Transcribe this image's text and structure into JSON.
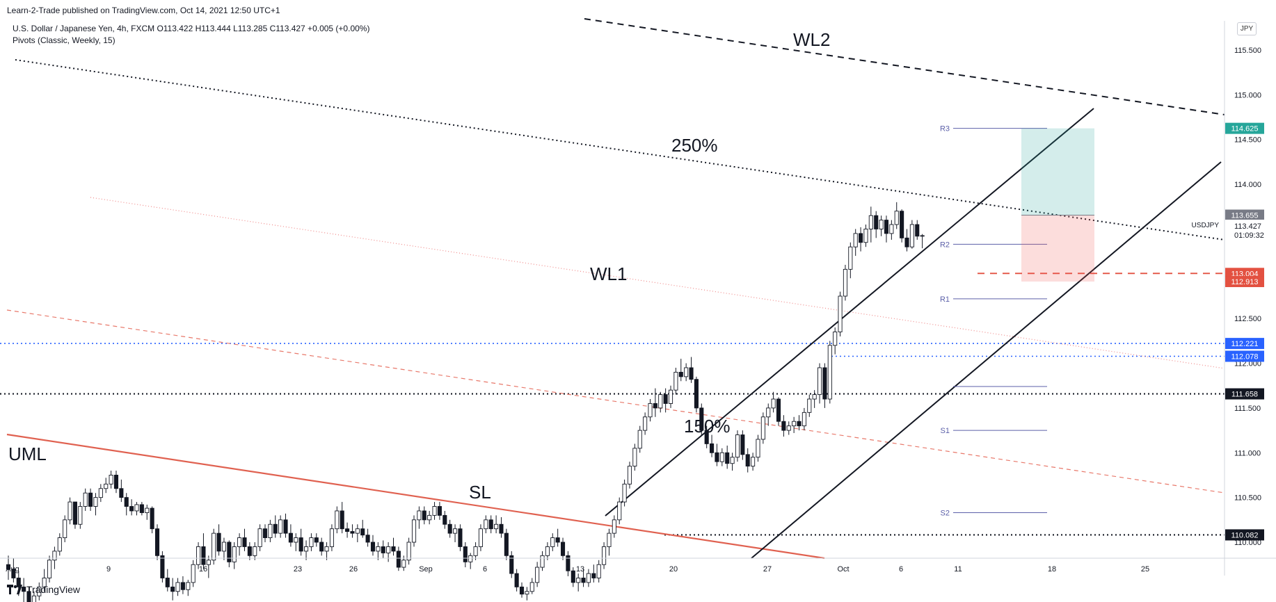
{
  "header": {
    "published": "Learn-2-Trade published on TradingView.com, Oct 14, 2021 12:50 UTC+1",
    "symbol_line": "U.S. Dollar / Japanese Yen, 4h, FXCM  O113.422  H113.444  L113.285  C113.427  +0.005 (+0.00%)",
    "indicator_line": "Pivots (Classic, Weekly, 15)"
  },
  "currency_button": "JPY",
  "footer": {
    "brand": "TradingView",
    "logo_icon": "tradingview-logo-icon"
  },
  "chart_data": {
    "type": "candlestick",
    "symbol": "USDJPY",
    "timeframe": "4h",
    "ylim": [
      109.55,
      115.9
    ],
    "y_ticks": [
      "115.500",
      "115.000",
      "114.500",
      "114.000",
      "113.500",
      "113.000",
      "112.500",
      "112.000",
      "111.500",
      "111.000",
      "110.500",
      "110.000"
    ],
    "x_ticks": [
      "Aug",
      "9",
      "16",
      "23",
      "26",
      "Sep",
      "6",
      "13",
      "20",
      "27",
      "Oct",
      "6",
      "11",
      "18",
      "25"
    ],
    "price_tags": [
      {
        "value": "114.625",
        "color": "#26a69a"
      },
      {
        "value": "113.655",
        "color": "#787b86"
      },
      {
        "value": "113.004",
        "color": "#e35141"
      },
      {
        "value": "112.913",
        "color": "#e35141"
      },
      {
        "value": "112.221",
        "color": "#2962ff"
      },
      {
        "value": "112.078",
        "color": "#2962ff"
      },
      {
        "value": "111.658",
        "color": "#131722"
      },
      {
        "value": "110.082",
        "color": "#131722"
      }
    ],
    "last_price": {
      "symbol": "USDJPY",
      "value": "113.427",
      "countdown": "01:09:32"
    },
    "pivots": [
      {
        "label": "R3",
        "value": 114.625
      },
      {
        "label": "R2",
        "value": 113.33
      },
      {
        "label": "R1",
        "value": 112.72
      },
      {
        "label": "",
        "value": 111.74
      },
      {
        "label": "S1",
        "value": 111.25
      },
      {
        "label": "S2",
        "value": 110.33
      }
    ],
    "position": {
      "entry": 113.655,
      "target": 114.625,
      "stop": 112.913
    },
    "annotations": [
      "WL2",
      "250%",
      "WL1",
      "150%",
      "UML",
      "SL"
    ],
    "candles": [
      {
        "o": 109.75,
        "h": 109.85,
        "l": 109.58,
        "c": 109.7
      },
      {
        "o": 109.7,
        "h": 109.82,
        "l": 109.55,
        "c": 109.6
      },
      {
        "o": 109.6,
        "h": 109.68,
        "l": 109.4,
        "c": 109.5
      },
      {
        "o": 109.5,
        "h": 109.6,
        "l": 109.3,
        "c": 109.45
      },
      {
        "o": 109.45,
        "h": 109.5,
        "l": 109.2,
        "c": 109.3
      },
      {
        "o": 109.3,
        "h": 109.45,
        "l": 109.2,
        "c": 109.4
      },
      {
        "o": 109.4,
        "h": 109.55,
        "l": 109.35,
        "c": 109.5
      },
      {
        "o": 109.5,
        "h": 109.7,
        "l": 109.45,
        "c": 109.6
      },
      {
        "o": 109.6,
        "h": 109.85,
        "l": 109.55,
        "c": 109.8
      },
      {
        "o": 109.8,
        "h": 109.95,
        "l": 109.7,
        "c": 109.9
      },
      {
        "o": 109.9,
        "h": 110.1,
        "l": 109.85,
        "c": 110.05
      },
      {
        "o": 110.05,
        "h": 110.3,
        "l": 110.0,
        "c": 110.25
      },
      {
        "o": 110.25,
        "h": 110.5,
        "l": 110.2,
        "c": 110.45
      },
      {
        "o": 110.45,
        "h": 110.45,
        "l": 110.15,
        "c": 110.2
      },
      {
        "o": 110.2,
        "h": 110.45,
        "l": 110.15,
        "c": 110.4
      },
      {
        "o": 110.4,
        "h": 110.6,
        "l": 110.35,
        "c": 110.55
      },
      {
        "o": 110.55,
        "h": 110.6,
        "l": 110.35,
        "c": 110.4
      },
      {
        "o": 110.4,
        "h": 110.55,
        "l": 110.3,
        "c": 110.5
      },
      {
        "o": 110.5,
        "h": 110.65,
        "l": 110.45,
        "c": 110.6
      },
      {
        "o": 110.6,
        "h": 110.72,
        "l": 110.55,
        "c": 110.65
      },
      {
        "o": 110.65,
        "h": 110.8,
        "l": 110.6,
        "c": 110.75
      },
      {
        "o": 110.75,
        "h": 110.8,
        "l": 110.55,
        "c": 110.6
      },
      {
        "o": 110.6,
        "h": 110.7,
        "l": 110.45,
        "c": 110.5
      },
      {
        "o": 110.5,
        "h": 110.55,
        "l": 110.3,
        "c": 110.4
      },
      {
        "o": 110.4,
        "h": 110.48,
        "l": 110.3,
        "c": 110.35
      },
      {
        "o": 110.35,
        "h": 110.45,
        "l": 110.3,
        "c": 110.42
      },
      {
        "o": 110.42,
        "h": 110.45,
        "l": 110.3,
        "c": 110.33
      },
      {
        "o": 110.33,
        "h": 110.42,
        "l": 110.25,
        "c": 110.38
      },
      {
        "o": 110.38,
        "h": 110.4,
        "l": 110.1,
        "c": 110.15
      },
      {
        "o": 110.15,
        "h": 110.2,
        "l": 109.8,
        "c": 109.85
      },
      {
        "o": 109.85,
        "h": 109.9,
        "l": 109.55,
        "c": 109.6
      },
      {
        "o": 109.6,
        "h": 109.7,
        "l": 109.45,
        "c": 109.5
      },
      {
        "o": 109.5,
        "h": 109.6,
        "l": 109.35,
        "c": 109.45
      },
      {
        "o": 109.45,
        "h": 109.6,
        "l": 109.4,
        "c": 109.55
      },
      {
        "o": 109.55,
        "h": 109.62,
        "l": 109.42,
        "c": 109.47
      },
      {
        "o": 109.47,
        "h": 109.58,
        "l": 109.4,
        "c": 109.55
      },
      {
        "o": 109.55,
        "h": 109.8,
        "l": 109.5,
        "c": 109.75
      },
      {
        "o": 109.75,
        "h": 110.0,
        "l": 109.7,
        "c": 109.95
      },
      {
        "o": 109.95,
        "h": 110.1,
        "l": 109.7,
        "c": 109.75
      },
      {
        "o": 109.75,
        "h": 109.85,
        "l": 109.6,
        "c": 109.8
      },
      {
        "o": 109.8,
        "h": 110.15,
        "l": 109.75,
        "c": 110.1
      },
      {
        "o": 110.1,
        "h": 110.2,
        "l": 109.85,
        "c": 109.9
      },
      {
        "o": 109.9,
        "h": 110.05,
        "l": 109.8,
        "c": 110.0
      },
      {
        "o": 110.0,
        "h": 110.02,
        "l": 109.72,
        "c": 109.78
      },
      {
        "o": 109.78,
        "h": 110.0,
        "l": 109.7,
        "c": 109.95
      },
      {
        "o": 109.95,
        "h": 110.1,
        "l": 109.85,
        "c": 110.05
      },
      {
        "o": 110.05,
        "h": 110.15,
        "l": 109.9,
        "c": 109.95
      },
      {
        "o": 109.95,
        "h": 110.0,
        "l": 109.8,
        "c": 109.85
      },
      {
        "o": 109.85,
        "h": 110.0,
        "l": 109.8,
        "c": 109.95
      },
      {
        "o": 109.95,
        "h": 110.2,
        "l": 109.9,
        "c": 110.15
      },
      {
        "o": 110.15,
        "h": 110.2,
        "l": 110.0,
        "c": 110.05
      },
      {
        "o": 110.05,
        "h": 110.25,
        "l": 110.0,
        "c": 110.2
      },
      {
        "o": 110.2,
        "h": 110.3,
        "l": 110.05,
        "c": 110.1
      },
      {
        "o": 110.1,
        "h": 110.3,
        "l": 110.05,
        "c": 110.25
      },
      {
        "o": 110.25,
        "h": 110.32,
        "l": 110.05,
        "c": 110.1
      },
      {
        "o": 110.1,
        "h": 110.2,
        "l": 109.95,
        "c": 110.0
      },
      {
        "o": 110.0,
        "h": 110.1,
        "l": 109.9,
        "c": 110.05
      },
      {
        "o": 110.05,
        "h": 110.15,
        "l": 109.85,
        "c": 109.9
      },
      {
        "o": 109.9,
        "h": 110.02,
        "l": 109.8,
        "c": 109.95
      },
      {
        "o": 109.95,
        "h": 110.1,
        "l": 109.9,
        "c": 110.05
      },
      {
        "o": 110.05,
        "h": 110.1,
        "l": 109.95,
        "c": 110.0
      },
      {
        "o": 110.0,
        "h": 110.05,
        "l": 109.85,
        "c": 109.9
      },
      {
        "o": 109.9,
        "h": 110.0,
        "l": 109.8,
        "c": 109.95
      },
      {
        "o": 109.95,
        "h": 110.2,
        "l": 109.9,
        "c": 110.15
      },
      {
        "o": 110.15,
        "h": 110.4,
        "l": 110.1,
        "c": 110.35
      },
      {
        "o": 110.35,
        "h": 110.45,
        "l": 110.1,
        "c": 110.15
      },
      {
        "o": 110.15,
        "h": 110.22,
        "l": 110.05,
        "c": 110.12
      },
      {
        "o": 110.12,
        "h": 110.2,
        "l": 110.05,
        "c": 110.1
      },
      {
        "o": 110.1,
        "h": 110.2,
        "l": 110.0,
        "c": 110.15
      },
      {
        "o": 110.15,
        "h": 110.25,
        "l": 110.05,
        "c": 110.08
      },
      {
        "o": 110.08,
        "h": 110.15,
        "l": 109.95,
        "c": 110.0
      },
      {
        "o": 110.0,
        "h": 110.08,
        "l": 109.85,
        "c": 109.9
      },
      {
        "o": 109.9,
        "h": 110.0,
        "l": 109.8,
        "c": 109.95
      },
      {
        "o": 109.95,
        "h": 110.02,
        "l": 109.82,
        "c": 109.88
      },
      {
        "o": 109.88,
        "h": 110.0,
        "l": 109.78,
        "c": 109.95
      },
      {
        "o": 109.95,
        "h": 110.05,
        "l": 109.85,
        "c": 109.9
      },
      {
        "o": 109.9,
        "h": 109.95,
        "l": 109.68,
        "c": 109.72
      },
      {
        "o": 109.72,
        "h": 109.85,
        "l": 109.68,
        "c": 109.8
      },
      {
        "o": 109.8,
        "h": 110.05,
        "l": 109.75,
        "c": 110.0
      },
      {
        "o": 110.0,
        "h": 110.3,
        "l": 109.95,
        "c": 110.25
      },
      {
        "o": 110.25,
        "h": 110.4,
        "l": 110.15,
        "c": 110.35
      },
      {
        "o": 110.35,
        "h": 110.4,
        "l": 110.2,
        "c": 110.25
      },
      {
        "o": 110.25,
        "h": 110.35,
        "l": 110.2,
        "c": 110.3
      },
      {
        "o": 110.3,
        "h": 110.45,
        "l": 110.25,
        "c": 110.4
      },
      {
        "o": 110.4,
        "h": 110.45,
        "l": 110.25,
        "c": 110.3
      },
      {
        "o": 110.3,
        "h": 110.35,
        "l": 110.15,
        "c": 110.2
      },
      {
        "o": 110.2,
        "h": 110.25,
        "l": 110.05,
        "c": 110.1
      },
      {
        "o": 110.1,
        "h": 110.2,
        "l": 110.0,
        "c": 110.15
      },
      {
        "o": 110.15,
        "h": 110.2,
        "l": 109.9,
        "c": 109.95
      },
      {
        "o": 109.95,
        "h": 110.0,
        "l": 109.72,
        "c": 109.78
      },
      {
        "o": 109.78,
        "h": 109.88,
        "l": 109.7,
        "c": 109.85
      },
      {
        "o": 109.85,
        "h": 110.0,
        "l": 109.8,
        "c": 109.95
      },
      {
        "o": 109.95,
        "h": 110.2,
        "l": 109.9,
        "c": 110.15
      },
      {
        "o": 110.15,
        "h": 110.3,
        "l": 110.1,
        "c": 110.25
      },
      {
        "o": 110.25,
        "h": 110.3,
        "l": 110.1,
        "c": 110.15
      },
      {
        "o": 110.15,
        "h": 110.3,
        "l": 110.1,
        "c": 110.2
      },
      {
        "o": 110.2,
        "h": 110.28,
        "l": 110.05,
        "c": 110.1
      },
      {
        "o": 110.1,
        "h": 110.15,
        "l": 109.8,
        "c": 109.85
      },
      {
        "o": 109.85,
        "h": 109.9,
        "l": 109.6,
        "c": 109.65
      },
      {
        "o": 109.65,
        "h": 109.7,
        "l": 109.45,
        "c": 109.5
      },
      {
        "o": 109.5,
        "h": 109.55,
        "l": 109.38,
        "c": 109.42
      },
      {
        "o": 109.42,
        "h": 109.5,
        "l": 109.35,
        "c": 109.45
      },
      {
        "o": 109.45,
        "h": 109.6,
        "l": 109.42,
        "c": 109.55
      },
      {
        "o": 109.55,
        "h": 109.78,
        "l": 109.5,
        "c": 109.72
      },
      {
        "o": 109.72,
        "h": 109.9,
        "l": 109.68,
        "c": 109.85
      },
      {
        "o": 109.85,
        "h": 110.0,
        "l": 109.8,
        "c": 109.95
      },
      {
        "o": 109.95,
        "h": 110.1,
        "l": 109.9,
        "c": 110.05
      },
      {
        "o": 110.05,
        "h": 110.15,
        "l": 109.95,
        "c": 110.0
      },
      {
        "o": 110.0,
        "h": 110.05,
        "l": 109.8,
        "c": 109.85
      },
      {
        "o": 109.85,
        "h": 109.9,
        "l": 109.62,
        "c": 109.68
      },
      {
        "o": 109.68,
        "h": 109.72,
        "l": 109.5,
        "c": 109.55
      },
      {
        "o": 109.55,
        "h": 109.65,
        "l": 109.45,
        "c": 109.6
      },
      {
        "o": 109.6,
        "h": 109.7,
        "l": 109.5,
        "c": 109.55
      },
      {
        "o": 109.55,
        "h": 109.7,
        "l": 109.5,
        "c": 109.65
      },
      {
        "o": 109.65,
        "h": 109.75,
        "l": 109.55,
        "c": 109.6
      },
      {
        "o": 109.6,
        "h": 109.8,
        "l": 109.55,
        "c": 109.75
      },
      {
        "o": 109.75,
        "h": 110.0,
        "l": 109.7,
        "c": 109.95
      },
      {
        "o": 109.95,
        "h": 110.15,
        "l": 109.85,
        "c": 110.1
      },
      {
        "o": 110.1,
        "h": 110.3,
        "l": 110.05,
        "c": 110.25
      },
      {
        "o": 110.25,
        "h": 110.5,
        "l": 110.2,
        "c": 110.45
      },
      {
        "o": 110.45,
        "h": 110.7,
        "l": 110.4,
        "c": 110.65
      },
      {
        "o": 110.65,
        "h": 110.9,
        "l": 110.6,
        "c": 110.85
      },
      {
        "o": 110.85,
        "h": 111.1,
        "l": 110.8,
        "c": 111.05
      },
      {
        "o": 111.05,
        "h": 111.3,
        "l": 111.0,
        "c": 111.25
      },
      {
        "o": 111.25,
        "h": 111.45,
        "l": 111.2,
        "c": 111.4
      },
      {
        "o": 111.4,
        "h": 111.6,
        "l": 111.35,
        "c": 111.55
      },
      {
        "o": 111.55,
        "h": 111.72,
        "l": 111.4,
        "c": 111.5
      },
      {
        "o": 111.5,
        "h": 111.68,
        "l": 111.45,
        "c": 111.65
      },
      {
        "o": 111.65,
        "h": 111.72,
        "l": 111.45,
        "c": 111.55
      },
      {
        "o": 111.55,
        "h": 111.75,
        "l": 111.5,
        "c": 111.7
      },
      {
        "o": 111.7,
        "h": 111.95,
        "l": 111.65,
        "c": 111.9
      },
      {
        "o": 111.9,
        "h": 112.05,
        "l": 111.8,
        "c": 111.85
      },
      {
        "o": 111.85,
        "h": 112.0,
        "l": 111.8,
        "c": 111.95
      },
      {
        "o": 111.95,
        "h": 112.07,
        "l": 111.78,
        "c": 111.82
      },
      {
        "o": 111.82,
        "h": 111.85,
        "l": 111.45,
        "c": 111.5
      },
      {
        "o": 111.5,
        "h": 111.55,
        "l": 111.2,
        "c": 111.25
      },
      {
        "o": 111.25,
        "h": 111.3,
        "l": 111.05,
        "c": 111.1
      },
      {
        "o": 111.1,
        "h": 111.2,
        "l": 110.95,
        "c": 111.0
      },
      {
        "o": 111.0,
        "h": 111.1,
        "l": 110.85,
        "c": 110.9
      },
      {
        "o": 110.9,
        "h": 111.05,
        "l": 110.85,
        "c": 111.0
      },
      {
        "o": 111.0,
        "h": 111.08,
        "l": 110.82,
        "c": 110.88
      },
      {
        "o": 110.88,
        "h": 111.0,
        "l": 110.8,
        "c": 110.95
      },
      {
        "o": 110.95,
        "h": 111.25,
        "l": 110.9,
        "c": 111.2
      },
      {
        "o": 111.2,
        "h": 111.25,
        "l": 110.92,
        "c": 110.98
      },
      {
        "o": 110.98,
        "h": 111.05,
        "l": 110.78,
        "c": 110.85
      },
      {
        "o": 110.85,
        "h": 111.0,
        "l": 110.8,
        "c": 110.95
      },
      {
        "o": 110.95,
        "h": 111.2,
        "l": 110.9,
        "c": 111.15
      },
      {
        "o": 111.15,
        "h": 111.45,
        "l": 111.1,
        "c": 111.4
      },
      {
        "o": 111.4,
        "h": 111.55,
        "l": 111.3,
        "c": 111.5
      },
      {
        "o": 111.5,
        "h": 111.68,
        "l": 111.45,
        "c": 111.6
      },
      {
        "o": 111.6,
        "h": 111.62,
        "l": 111.3,
        "c": 111.35
      },
      {
        "o": 111.35,
        "h": 111.42,
        "l": 111.18,
        "c": 111.25
      },
      {
        "o": 111.25,
        "h": 111.35,
        "l": 111.2,
        "c": 111.3
      },
      {
        "o": 111.3,
        "h": 111.4,
        "l": 111.22,
        "c": 111.35
      },
      {
        "o": 111.35,
        "h": 111.42,
        "l": 111.25,
        "c": 111.3
      },
      {
        "o": 111.3,
        "h": 111.5,
        "l": 111.25,
        "c": 111.45
      },
      {
        "o": 111.45,
        "h": 111.65,
        "l": 111.4,
        "c": 111.6
      },
      {
        "o": 111.6,
        "h": 111.7,
        "l": 111.5,
        "c": 111.65
      },
      {
        "o": 111.65,
        "h": 112.0,
        "l": 111.55,
        "c": 111.95
      },
      {
        "o": 111.95,
        "h": 112.0,
        "l": 111.5,
        "c": 111.6
      },
      {
        "o": 111.6,
        "h": 112.25,
        "l": 111.55,
        "c": 112.2
      },
      {
        "o": 112.2,
        "h": 112.4,
        "l": 112.1,
        "c": 112.35
      },
      {
        "o": 112.35,
        "h": 112.8,
        "l": 112.3,
        "c": 112.75
      },
      {
        "o": 112.75,
        "h": 113.1,
        "l": 112.7,
        "c": 113.05
      },
      {
        "o": 113.05,
        "h": 113.35,
        "l": 112.95,
        "c": 113.3
      },
      {
        "o": 113.3,
        "h": 113.5,
        "l": 113.2,
        "c": 113.45
      },
      {
        "o": 113.45,
        "h": 113.52,
        "l": 113.25,
        "c": 113.35
      },
      {
        "o": 113.35,
        "h": 113.55,
        "l": 113.3,
        "c": 113.5
      },
      {
        "o": 113.5,
        "h": 113.75,
        "l": 113.35,
        "c": 113.65
      },
      {
        "o": 113.65,
        "h": 113.7,
        "l": 113.4,
        "c": 113.5
      },
      {
        "o": 113.5,
        "h": 113.65,
        "l": 113.42,
        "c": 113.6
      },
      {
        "o": 113.6,
        "h": 113.65,
        "l": 113.35,
        "c": 113.45
      },
      {
        "o": 113.45,
        "h": 113.6,
        "l": 113.38,
        "c": 113.55
      },
      {
        "o": 113.55,
        "h": 113.8,
        "l": 113.5,
        "c": 113.7
      },
      {
        "o": 113.7,
        "h": 113.72,
        "l": 113.35,
        "c": 113.4
      },
      {
        "o": 113.4,
        "h": 113.5,
        "l": 113.25,
        "c": 113.3
      },
      {
        "o": 113.3,
        "h": 113.6,
        "l": 113.28,
        "c": 113.55
      },
      {
        "o": 113.55,
        "h": 113.6,
        "l": 113.38,
        "c": 113.42
      },
      {
        "o": 113.42,
        "h": 113.444,
        "l": 113.285,
        "c": 113.427
      }
    ]
  }
}
